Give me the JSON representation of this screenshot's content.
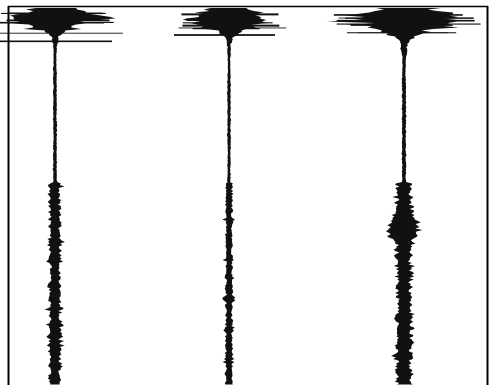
{
  "figure": {
    "background": "#ffffff",
    "ink_color": "#111111",
    "frame_color": "#000000",
    "traces": [
      {
        "id": "trace-1"
      },
      {
        "id": "trace-2"
      },
      {
        "id": "trace-3"
      }
    ]
  }
}
